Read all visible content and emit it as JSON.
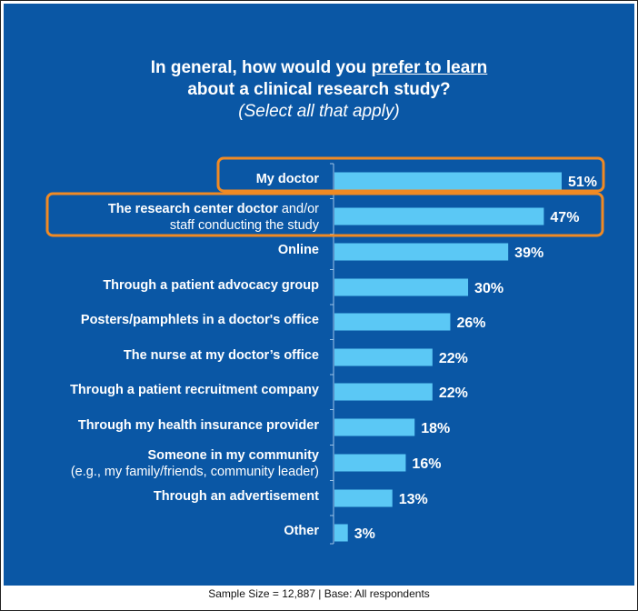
{
  "title": {
    "line1_prefix": "In general, how would you ",
    "line1_emphasis": "prefer to learn",
    "line2": "about a clinical research study?",
    "subtitle": "(Select all that apply)"
  },
  "colors": {
    "background": "#0a57a5",
    "bar": "#5bc8f5",
    "highlight_box": "#f08a24",
    "text": "#ffffff"
  },
  "chart_data": {
    "type": "bar",
    "orientation": "horizontal",
    "categories": [
      {
        "bold": "My doctor",
        "normal": "",
        "line2": ""
      },
      {
        "bold": "The research center doctor",
        "normal": " and/or",
        "line2": "staff conducting the study"
      },
      {
        "bold": "Online",
        "normal": "",
        "line2": ""
      },
      {
        "bold": "Through a patient advocacy group",
        "normal": "",
        "line2": ""
      },
      {
        "bold": "Posters/pamphlets in a doctor's office",
        "normal": "",
        "line2": ""
      },
      {
        "bold": "The nurse at my doctor’s office",
        "normal": "",
        "line2": ""
      },
      {
        "bold": "Through a patient recruitment company",
        "normal": "",
        "line2": ""
      },
      {
        "bold": "Through my health insurance provider",
        "normal": "",
        "line2": ""
      },
      {
        "bold": "Someone in my community",
        "normal": "",
        "line2": "(e.g., my family/friends, community leader)"
      },
      {
        "bold": "Through an advertisement",
        "normal": "",
        "line2": ""
      },
      {
        "bold": "Other",
        "normal": "",
        "line2": ""
      }
    ],
    "values": [
      51,
      47,
      39,
      30,
      26,
      22,
      22,
      18,
      16,
      13,
      3
    ],
    "value_labels": [
      "51%",
      "47%",
      "39%",
      "30%",
      "26%",
      "22%",
      "22%",
      "18%",
      "16%",
      "13%",
      "3%"
    ],
    "highlighted": [
      0,
      1
    ],
    "xlim": [
      0,
      100
    ]
  },
  "footer": "Sample Size = 12,887 | Base: All respondents"
}
